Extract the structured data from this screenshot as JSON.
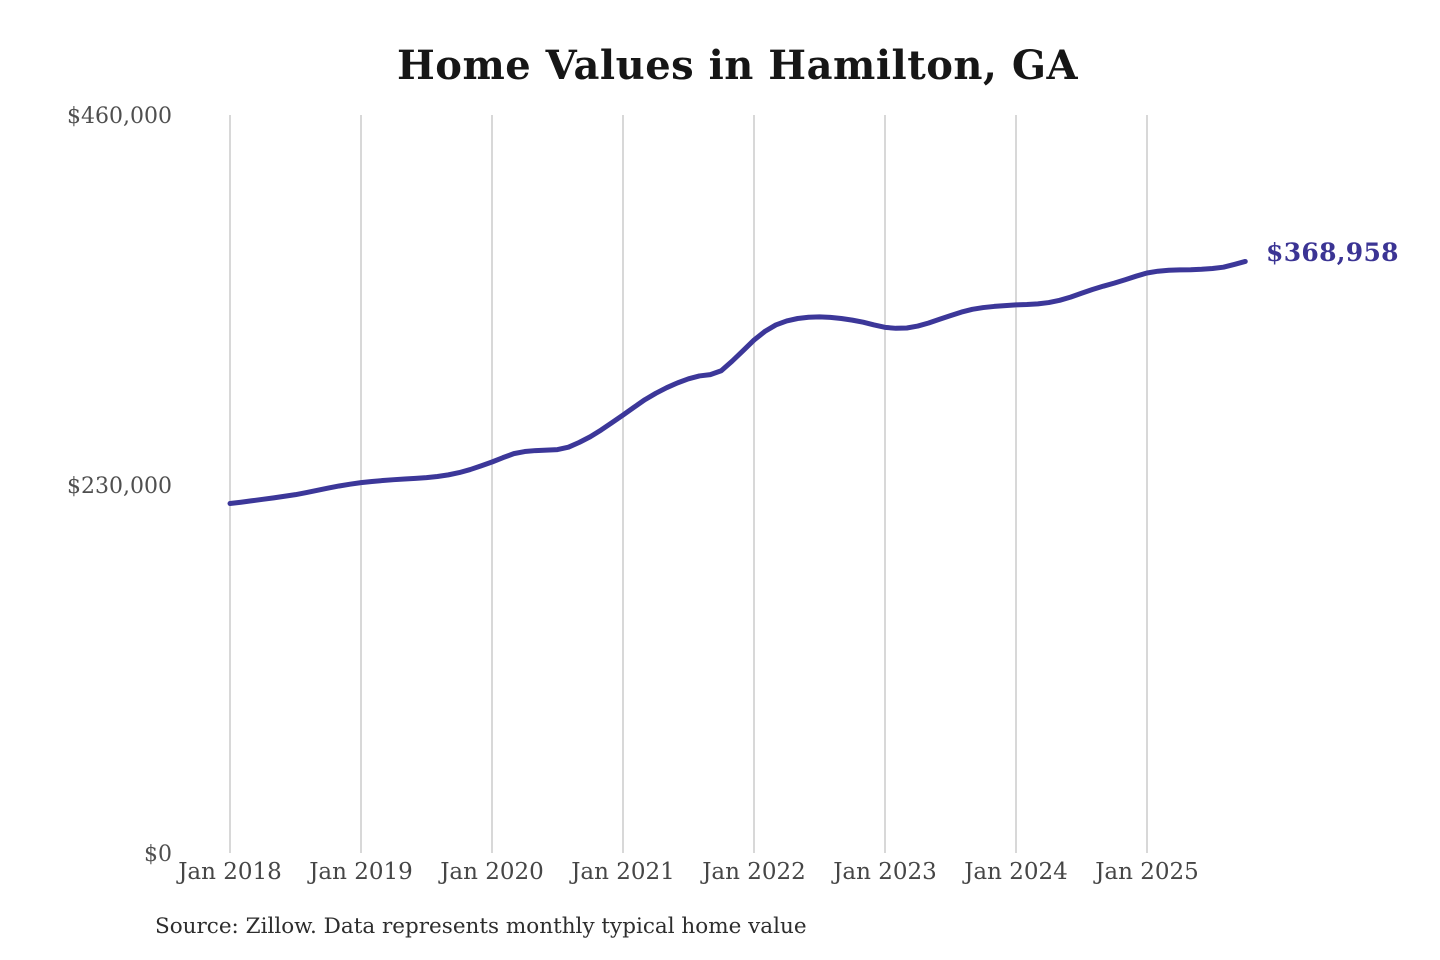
{
  "title": "Home Values in Hamilton, GA",
  "end_label": "$368,958",
  "source_note": "Source: Zillow. Data represents monthly typical home value",
  "y_axis": {
    "labels": [
      {
        "text": "$460,000",
        "value": 460000
      },
      {
        "text": "$230,000",
        "value": 230000
      },
      {
        "text": "$0",
        "value": 0
      }
    ]
  },
  "x_axis": {
    "labels": [
      "Jan 2018",
      "Jan 2019",
      "Jan 2020",
      "Jan 2021",
      "Jan 2022",
      "Jan 2023",
      "Jan 2024",
      "Jan 2025"
    ]
  },
  "colors": {
    "line": "#3c3799",
    "end_label": "#3b3494",
    "gridline": "#cccccc",
    "title": "#161616",
    "axis_text": "#4a4a4a",
    "background": "#ffffff"
  },
  "chart_data": {
    "type": "line",
    "title": "Home Values in Hamilton, GA",
    "series_name": "Monthly typical home value (USD)",
    "x_start": "2018-01",
    "x_end": "2025-10",
    "x_tick_labels": [
      "Jan 2018",
      "Jan 2019",
      "Jan 2020",
      "Jan 2021",
      "Jan 2022",
      "Jan 2023",
      "Jan 2024",
      "Jan 2025"
    ],
    "x_tick_month_indices": [
      0,
      12,
      24,
      36,
      48,
      60,
      72,
      84
    ],
    "ylim": [
      0,
      460000
    ],
    "y_tick_values": [
      0,
      230000,
      460000
    ],
    "grid": "vertical-only",
    "legend": "none",
    "latest_value": 368958,
    "line_color": "#3c3799",
    "monthly_values": [
      218500,
      219300,
      220200,
      221100,
      222000,
      223000,
      224000,
      225300,
      226700,
      228100,
      229400,
      230500,
      231500,
      232200,
      232800,
      233300,
      233700,
      234100,
      234600,
      235300,
      236300,
      237700,
      239600,
      241900,
      244300,
      247000,
      249500,
      250800,
      251400,
      251700,
      252000,
      253500,
      256500,
      260000,
      264200,
      268800,
      273500,
      278300,
      283000,
      287000,
      290500,
      293500,
      296000,
      297800,
      298600,
      301000,
      307000,
      313500,
      320100,
      325500,
      329500,
      332000,
      333500,
      334300,
      334500,
      334200,
      333500,
      332500,
      331200,
      329500,
      328000,
      327400,
      327600,
      328800,
      330700,
      333000,
      335300,
      337500,
      339200,
      340300,
      341000,
      341500,
      342000,
      342200,
      342600,
      343400,
      344800,
      346800,
      349200,
      351500,
      353600,
      355500,
      357600,
      359800,
      361800,
      362900,
      363500,
      363700,
      363800,
      364100,
      364600,
      365400,
      367100,
      368958
    ]
  }
}
